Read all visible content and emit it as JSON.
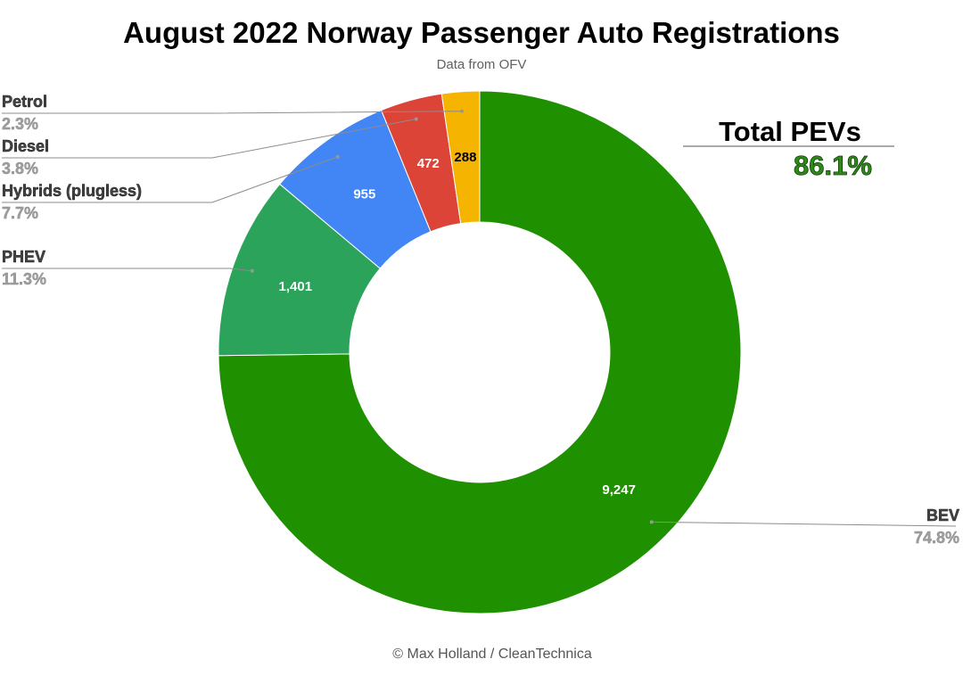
{
  "chart_data": {
    "type": "pie",
    "donut": true,
    "title": "August 2022 Norway Passenger Auto Registrations",
    "subtitle": "Data from OFV",
    "credit": "© Max Holland / CleanTechnica",
    "slices": [
      {
        "label": "BEV",
        "value": 9247,
        "value_label": "9,247",
        "percent_label": "74.8%",
        "color": "#1f9100",
        "text_color": "#ffffff"
      },
      {
        "label": "PHEV",
        "value": 1401,
        "value_label": "1,401",
        "percent_label": "11.3%",
        "color": "#2ba35a",
        "text_color": "#ffffff"
      },
      {
        "label": "Hybrids (plugless)",
        "value": 955,
        "value_label": "955",
        "percent_label": "7.7%",
        "color": "#4285f4",
        "text_color": "#ffffff"
      },
      {
        "label": "Diesel",
        "value": 472,
        "value_label": "472",
        "percent_label": "3.8%",
        "color": "#db4437",
        "text_color": "#ffffff"
      },
      {
        "label": "Petrol",
        "value": 288,
        "value_label": "288",
        "percent_label": "2.3%",
        "color": "#f4b400",
        "text_color": "#000000"
      }
    ],
    "annotation": {
      "label": "Total PEVs",
      "value": "86.1%",
      "color": "#2e8b1a"
    },
    "legend": "none"
  }
}
